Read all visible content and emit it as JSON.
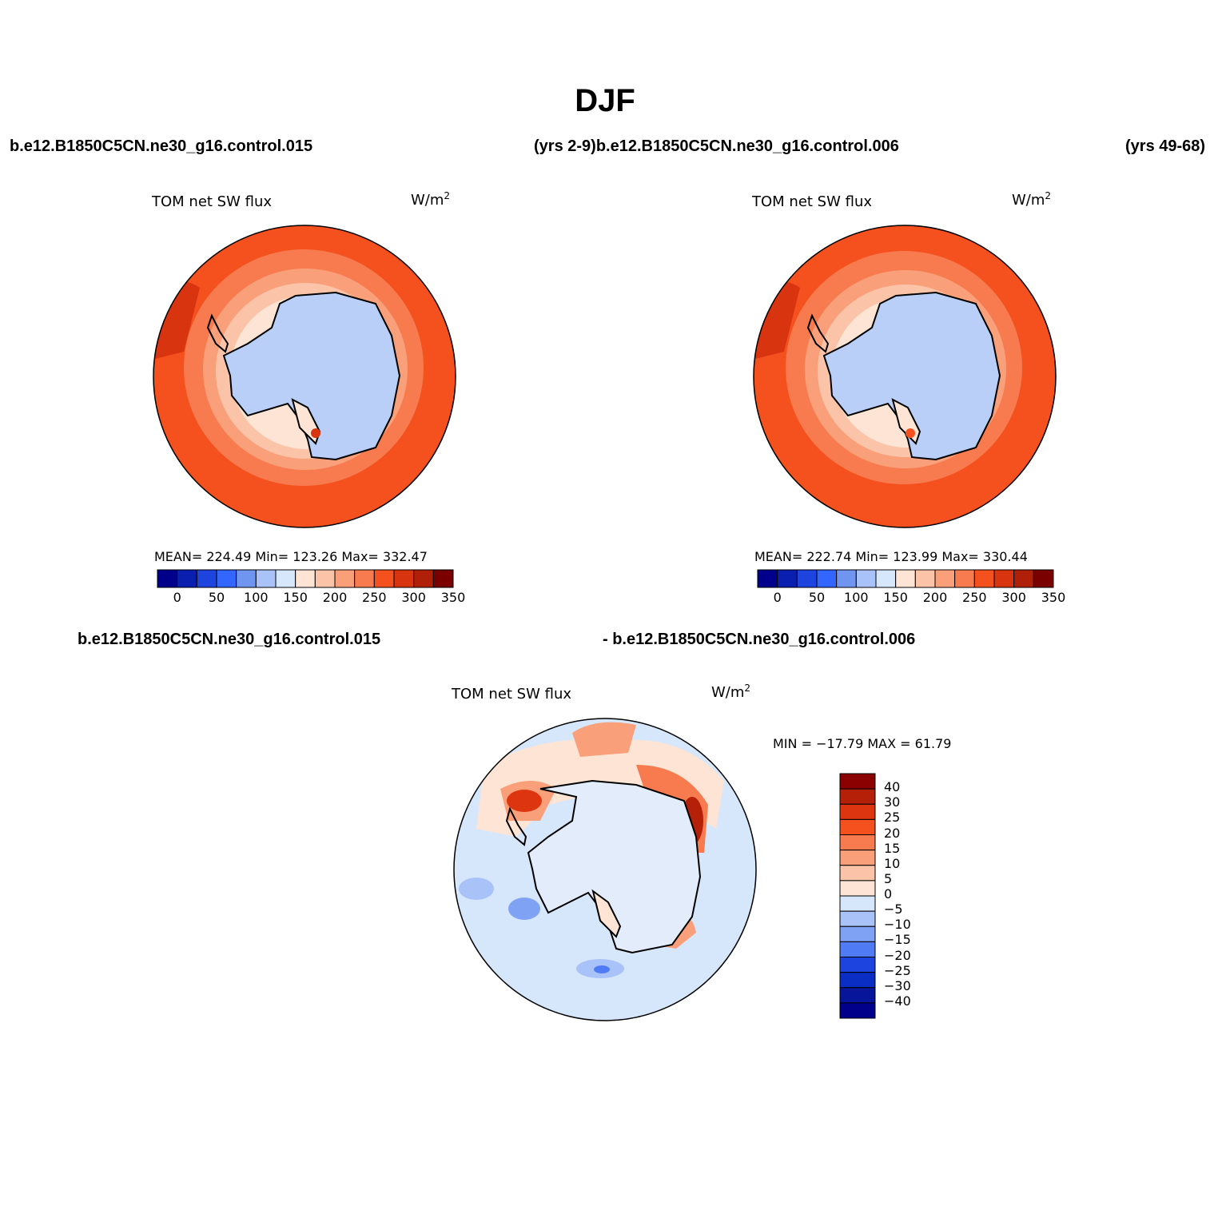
{
  "title": "DJF",
  "header": {
    "case_top_left": "b.e12.B1850C5CN.ne30_g16.control.015",
    "case_top_middle": "(yrs 2-9)b.e12.B1850C5CN.ne30_g16.control.006",
    "case_top_right": "(yrs 49-68)",
    "case_bottom_left": "b.e12.B1850C5CN.ne30_g16.control.015",
    "case_bottom_right": "- b.e12.B1850C5CN.ne30_g16.control.006"
  },
  "panels": [
    {
      "variable": "TOM net SW flux",
      "units": "W/m",
      "units_sup": "2",
      "stats": "MEAN= 224.49   Min= 123.26   Max= 332.47",
      "colorbar_ticks": [
        "0",
        "50",
        "100",
        "150",
        "200",
        "250",
        "300",
        "350"
      ]
    },
    {
      "variable": "TOM net SW flux",
      "units": "W/m",
      "units_sup": "2",
      "stats": "MEAN= 222.74   Min= 123.99   Max= 330.44",
      "colorbar_ticks": [
        "0",
        "50",
        "100",
        "150",
        "200",
        "250",
        "300",
        "350"
      ]
    },
    {
      "variable": "TOM net SW flux",
      "units": "W/m",
      "units_sup": "2",
      "stats": "MIN = −17.79 MAX =  61.79",
      "colorbar_ticks": [
        "40",
        "30",
        "25",
        "20",
        "15",
        "10",
        "5",
        "0",
        "−5",
        "−10",
        "−15",
        "−20",
        "−25",
        "−30",
        "−40"
      ]
    }
  ],
  "colors": {
    "abs_scale": [
      "#00008b",
      "#0a1fb0",
      "#1e44e0",
      "#3366ff",
      "#6f95f0",
      "#a9c2f7",
      "#d7e7fb",
      "#fde4d4",
      "#fbc4a8",
      "#f9a07a",
      "#f77b4e",
      "#f4511e",
      "#d83410",
      "#b02008",
      "#7a0000"
    ],
    "diff_scale_top_to_bottom": [
      "#8b0000",
      "#b52008",
      "#dd3510",
      "#f4511e",
      "#f77b4e",
      "#f9a07a",
      "#fbc4a8",
      "#fde4d4",
      "#d7e7fb",
      "#a9c2f7",
      "#7fa2f4",
      "#4f7cf4",
      "#1e44e0",
      "#0a2ec4",
      "#06159a",
      "#00008b"
    ]
  }
}
